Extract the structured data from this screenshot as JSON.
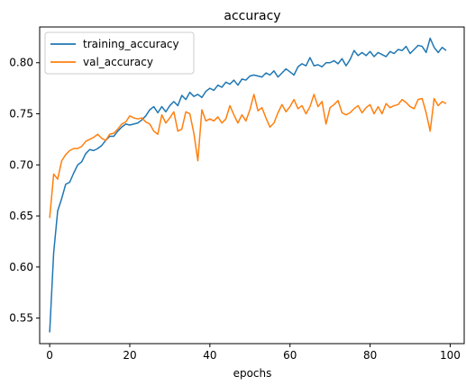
{
  "chart_data": {
    "type": "line",
    "title": "accuracy",
    "xlabel": "epochs",
    "ylabel": "",
    "xlim": [
      -2.5,
      103.5
    ],
    "ylim": [
      0.525,
      0.835
    ],
    "xticks": [
      0,
      20,
      40,
      60,
      80,
      100
    ],
    "xtick_labels": [
      "0",
      "20",
      "40",
      "60",
      "80",
      "100"
    ],
    "yticks": [
      0.55,
      0.6,
      0.65,
      0.7,
      0.75,
      0.8
    ],
    "ytick_labels": [
      "0.55",
      "0.60",
      "0.65",
      "0.70",
      "0.75",
      "0.80"
    ],
    "grid": false,
    "legend_position": "upper-left",
    "x": [
      0,
      1,
      2,
      3,
      4,
      5,
      6,
      7,
      8,
      9,
      10,
      11,
      12,
      13,
      14,
      15,
      16,
      17,
      18,
      19,
      20,
      21,
      22,
      23,
      24,
      25,
      26,
      27,
      28,
      29,
      30,
      31,
      32,
      33,
      34,
      35,
      36,
      37,
      38,
      39,
      40,
      41,
      42,
      43,
      44,
      45,
      46,
      47,
      48,
      49,
      50,
      51,
      52,
      53,
      54,
      55,
      56,
      57,
      58,
      59,
      60,
      61,
      62,
      63,
      64,
      65,
      66,
      67,
      68,
      69,
      70,
      71,
      72,
      73,
      74,
      75,
      76,
      77,
      78,
      79,
      80,
      81,
      82,
      83,
      84,
      85,
      86,
      87,
      88,
      89,
      90,
      91,
      92,
      93,
      94,
      95,
      96,
      97,
      98,
      99
    ],
    "series": [
      {
        "name": "training_accuracy",
        "color": "#1f77b4",
        "values": [
          0.536,
          0.614,
          0.655,
          0.667,
          0.681,
          0.683,
          0.692,
          0.7,
          0.703,
          0.711,
          0.715,
          0.714,
          0.716,
          0.719,
          0.724,
          0.728,
          0.728,
          0.733,
          0.737,
          0.74,
          0.739,
          0.74,
          0.741,
          0.744,
          0.748,
          0.754,
          0.757,
          0.751,
          0.757,
          0.752,
          0.758,
          0.762,
          0.758,
          0.768,
          0.764,
          0.771,
          0.767,
          0.769,
          0.766,
          0.772,
          0.775,
          0.773,
          0.778,
          0.776,
          0.781,
          0.779,
          0.783,
          0.778,
          0.784,
          0.783,
          0.787,
          0.788,
          0.787,
          0.786,
          0.79,
          0.788,
          0.792,
          0.786,
          0.79,
          0.794,
          0.791,
          0.788,
          0.796,
          0.799,
          0.797,
          0.805,
          0.797,
          0.798,
          0.796,
          0.8,
          0.8,
          0.802,
          0.799,
          0.804,
          0.797,
          0.803,
          0.812,
          0.807,
          0.81,
          0.807,
          0.811,
          0.806,
          0.81,
          0.808,
          0.806,
          0.811,
          0.809,
          0.813,
          0.812,
          0.816,
          0.809,
          0.813,
          0.817,
          0.816,
          0.81,
          0.824,
          0.815,
          0.81,
          0.815,
          0.812
        ]
      },
      {
        "name": "val_accuracy",
        "color": "#ff7f0e",
        "values": [
          0.648,
          0.691,
          0.686,
          0.704,
          0.71,
          0.714,
          0.716,
          0.716,
          0.718,
          0.723,
          0.725,
          0.727,
          0.73,
          0.726,
          0.724,
          0.73,
          0.731,
          0.735,
          0.74,
          0.742,
          0.748,
          0.746,
          0.745,
          0.746,
          0.742,
          0.74,
          0.733,
          0.73,
          0.749,
          0.741,
          0.746,
          0.752,
          0.733,
          0.735,
          0.752,
          0.75,
          0.731,
          0.704,
          0.754,
          0.743,
          0.745,
          0.743,
          0.747,
          0.741,
          0.745,
          0.758,
          0.749,
          0.741,
          0.749,
          0.743,
          0.754,
          0.769,
          0.753,
          0.756,
          0.746,
          0.737,
          0.741,
          0.751,
          0.759,
          0.752,
          0.757,
          0.764,
          0.755,
          0.758,
          0.75,
          0.757,
          0.769,
          0.757,
          0.762,
          0.74,
          0.756,
          0.759,
          0.763,
          0.751,
          0.749,
          0.751,
          0.755,
          0.758,
          0.751,
          0.756,
          0.759,
          0.75,
          0.757,
          0.75,
          0.76,
          0.756,
          0.758,
          0.759,
          0.764,
          0.761,
          0.757,
          0.755,
          0.764,
          0.765,
          0.751,
          0.733,
          0.765,
          0.758,
          0.762,
          0.76
        ]
      }
    ]
  }
}
